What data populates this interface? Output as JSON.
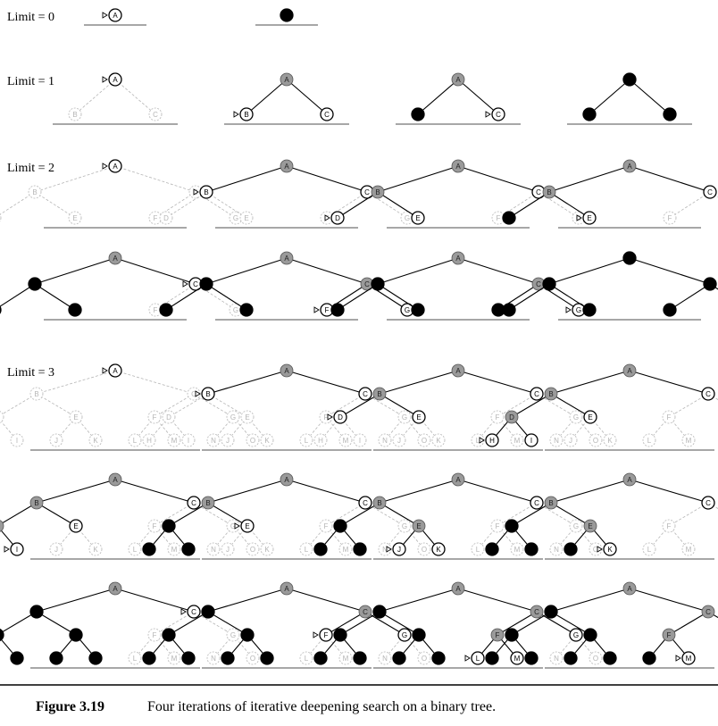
{
  "figure": {
    "number": "Figure 3.19",
    "caption": "Four iterations of iterative deepening search on a binary tree."
  },
  "limits": [
    {
      "label": "Limit = 0",
      "depth": 0,
      "panels": 2
    },
    {
      "label": "Limit = 1",
      "depth": 1,
      "panels": 4
    },
    {
      "label": "Limit = 2",
      "depth": 2,
      "panels": 8
    },
    {
      "label": "Limit = 3",
      "depth": 3,
      "panels": 12
    }
  ],
  "node_labels": [
    "A",
    "B",
    "C",
    "D",
    "E",
    "F",
    "G",
    "H",
    "I",
    "J",
    "K",
    "L",
    "M",
    "N",
    "O"
  ],
  "state_legend": {
    "g": "unexpanded (ghost)",
    "f": "frontier",
    "x": "expanded (gray)",
    "b": "explored (black)",
    "h": "removed (hidden)"
  },
  "panel_states": [
    [
      {
        "A": "f"
      },
      {
        "A": "b"
      }
    ],
    [
      {
        "A": "f",
        "B": "g",
        "C": "g"
      },
      {
        "A": "x",
        "B": "f",
        "C": "f"
      },
      {
        "A": "x",
        "B": "b",
        "C": "f"
      },
      {
        "A": "b",
        "B": "b",
        "C": "b"
      }
    ],
    [
      {
        "A": "f",
        "B": "g",
        "C": "g",
        "D": "g",
        "E": "g",
        "F": "g",
        "G": "g"
      },
      {
        "A": "x",
        "B": "f",
        "C": "f",
        "D": "g",
        "E": "g",
        "F": "g",
        "G": "g"
      },
      {
        "A": "x",
        "B": "x",
        "C": "f",
        "D": "f",
        "E": "f",
        "F": "g",
        "G": "g"
      },
      {
        "A": "x",
        "B": "x",
        "C": "f",
        "D": "b",
        "E": "f",
        "F": "g",
        "G": "g"
      },
      {
        "A": "x",
        "B": "b",
        "C": "f",
        "D": "b",
        "E": "b",
        "F": "g",
        "G": "g"
      },
      {
        "A": "x",
        "B": "b",
        "C": "x",
        "D": "b",
        "E": "b",
        "F": "f",
        "G": "f"
      },
      {
        "A": "x",
        "B": "b",
        "C": "x",
        "D": "b",
        "E": "b",
        "F": "b",
        "G": "f"
      },
      {
        "A": "b",
        "B": "b",
        "C": "b",
        "D": "b",
        "E": "b",
        "F": "b",
        "G": "b"
      }
    ],
    [
      {
        "A": "f",
        "B": "g",
        "C": "g",
        "D": "g",
        "E": "g",
        "F": "g",
        "G": "g",
        "H": "g",
        "I": "g",
        "J": "g",
        "K": "g",
        "L": "g",
        "M": "g",
        "N": "g",
        "O": "g"
      },
      {
        "A": "x",
        "B": "f",
        "C": "f",
        "D": "g",
        "E": "g",
        "F": "g",
        "G": "g",
        "H": "g",
        "I": "g",
        "J": "g",
        "K": "g",
        "L": "g",
        "M": "g",
        "N": "g",
        "O": "g"
      },
      {
        "A": "x",
        "B": "x",
        "C": "f",
        "D": "f",
        "E": "f",
        "F": "g",
        "G": "g",
        "H": "g",
        "I": "g",
        "J": "g",
        "K": "g",
        "L": "g",
        "M": "g",
        "N": "g",
        "O": "g"
      },
      {
        "A": "x",
        "B": "x",
        "C": "f",
        "D": "x",
        "E": "f",
        "F": "g",
        "G": "g",
        "H": "f",
        "I": "f",
        "J": "g",
        "K": "g",
        "L": "g",
        "M": "g",
        "N": "g",
        "O": "g"
      },
      {
        "A": "x",
        "B": "x",
        "C": "f",
        "D": "x",
        "E": "f",
        "F": "g",
        "G": "g",
        "H": "b",
        "I": "f",
        "J": "g",
        "K": "g",
        "L": "g",
        "M": "g",
        "N": "g",
        "O": "g"
      },
      {
        "A": "x",
        "B": "x",
        "C": "f",
        "D": "b",
        "E": "f",
        "F": "g",
        "G": "g",
        "H": "b",
        "I": "b",
        "J": "g",
        "K": "g",
        "L": "g",
        "M": "g",
        "N": "g",
        "O": "g"
      },
      {
        "A": "x",
        "B": "x",
        "C": "f",
        "D": "b",
        "E": "x",
        "F": "g",
        "G": "g",
        "H": "b",
        "I": "b",
        "J": "f",
        "K": "f",
        "L": "g",
        "M": "g",
        "N": "g",
        "O": "g"
      },
      {
        "A": "x",
        "B": "x",
        "C": "f",
        "D": "b",
        "E": "x",
        "F": "g",
        "G": "g",
        "H": "b",
        "I": "b",
        "J": "b",
        "K": "f",
        "L": "g",
        "M": "g",
        "N": "g",
        "O": "g"
      },
      {
        "A": "x",
        "B": "b",
        "C": "f",
        "D": "b",
        "E": "b",
        "F": "g",
        "G": "g",
        "H": "b",
        "I": "b",
        "J": "b",
        "K": "b",
        "L": "g",
        "M": "g",
        "N": "g",
        "O": "g"
      },
      {
        "A": "x",
        "B": "b",
        "C": "x",
        "D": "b",
        "E": "b",
        "F": "f",
        "G": "f",
        "H": "b",
        "I": "b",
        "J": "b",
        "K": "b",
        "L": "g",
        "M": "g",
        "N": "g",
        "O": "g"
      },
      {
        "A": "x",
        "B": "b",
        "C": "x",
        "D": "b",
        "E": "b",
        "F": "x",
        "G": "f",
        "H": "b",
        "I": "b",
        "J": "b",
        "K": "b",
        "L": "f",
        "M": "f",
        "N": "g",
        "O": "g"
      },
      {
        "A": "x",
        "B": "b",
        "C": "x",
        "D": "b",
        "E": "b",
        "F": "x",
        "G": "f",
        "H": "b",
        "I": "b",
        "J": "b",
        "K": "b",
        "L": "b",
        "M": "f",
        "N": "g",
        "O": "g"
      }
    ]
  ],
  "arrow_nodes": [
    [
      "A",
      ""
    ],
    [
      "A",
      "B",
      "C",
      ""
    ],
    [
      "A",
      "B",
      "D",
      "E",
      "C",
      "F",
      "G",
      ""
    ],
    [
      "A",
      "B",
      "D",
      "H",
      "I",
      "E",
      "J",
      "K",
      "C",
      "F",
      "L",
      "M"
    ]
  ],
  "colors": {
    "ink": "#000000",
    "gray": "#9a9a9a",
    "ghost": "#b5b5b5",
    "baseline": "#8a8a8a",
    "rule": "#000000"
  }
}
